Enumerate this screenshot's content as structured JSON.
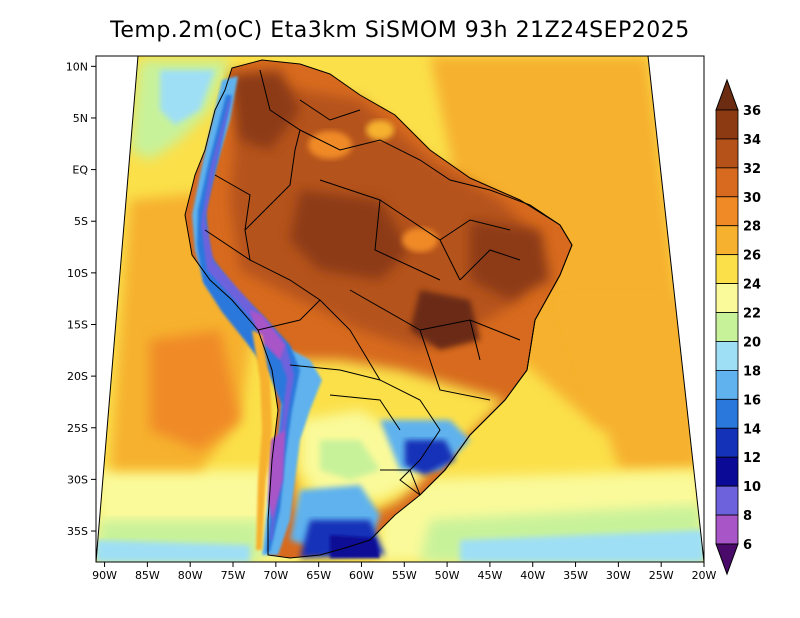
{
  "title": "Temp.2m(oC) Eta3km SiSMOM 93h 21Z24SEP2025",
  "map": {
    "lat_labels": [
      "10N",
      "5N",
      "EQ",
      "5S",
      "10S",
      "15S",
      "20S",
      "25S",
      "30S",
      "35S"
    ],
    "lat_values": [
      10,
      5,
      0,
      -5,
      -10,
      -15,
      -20,
      -25,
      -30,
      -35
    ],
    "lon_labels": [
      "90W",
      "85W",
      "80W",
      "75W",
      "70W",
      "65W",
      "60W",
      "55W",
      "50W",
      "45W",
      "40W",
      "35W",
      "30W",
      "25W",
      "20W"
    ],
    "lon_values": [
      -90,
      -85,
      -80,
      -75,
      -70,
      -65,
      -60,
      -55,
      -50,
      -45,
      -40,
      -35,
      -30,
      -25,
      -20
    ],
    "lat_range": [
      -38,
      11
    ],
    "lon_range": [
      -91,
      -20
    ]
  },
  "colorbar": {
    "labels": [
      "36",
      "34",
      "32",
      "30",
      "28",
      "26",
      "24",
      "22",
      "20",
      "18",
      "16",
      "14",
      "12",
      "10",
      "8",
      "6"
    ],
    "colors": [
      "#6b2c12",
      "#8c3a12",
      "#b5521a",
      "#d76a1e",
      "#f08a26",
      "#f6b12e",
      "#fbe04a",
      "#fafa9a",
      "#c8f29a",
      "#9fdff5",
      "#5fb2ee",
      "#2a78dc",
      "#1432b8",
      "#0a0a96",
      "#6e62dc",
      "#a855c8",
      "#7a1a9a",
      "#4a0a6a"
    ],
    "units": "oC"
  }
}
